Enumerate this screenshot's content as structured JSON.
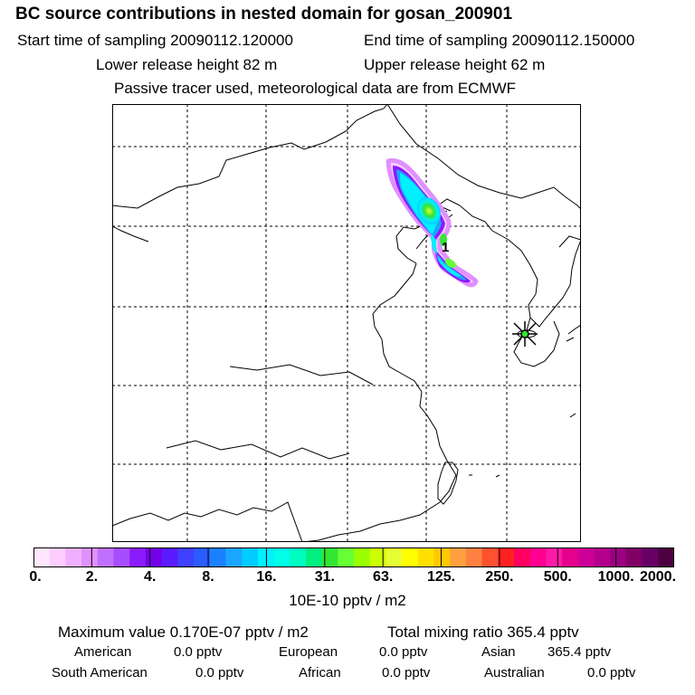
{
  "header": {
    "title": "BC  source contributions in nested domain for gosan_200901",
    "start_label": "Start time of sampling 20090112.120000",
    "end_label": "End time of sampling 20090112.150000",
    "lower_label": "Lower release height   82 m",
    "upper_label": "Upper release height   62 m",
    "tracer_note": "Passive tracer used, meteorological data are from ECMWF"
  },
  "map": {
    "release_marker_label": "1",
    "receptor": "gosan"
  },
  "colorbar": {
    "ticks": [
      "0.",
      "2.",
      "4.",
      "8.",
      "16.",
      "31.",
      "63.",
      "125.",
      "250.",
      "500.",
      "1000.",
      "2000."
    ],
    "unit": "10E-10 pptv / m2",
    "colors": [
      "#ffe6ff",
      "#ffccff",
      "#f0b0ff",
      "#e090ff",
      "#c070ff",
      "#a64dff",
      "#8c1aff",
      "#7300e6",
      "#5a1aff",
      "#4040ff",
      "#2a5cff",
      "#1a80ff",
      "#1aa6ff",
      "#00ccff",
      "#00f0ff",
      "#00ffe6",
      "#00ffbf",
      "#00f080",
      "#33e633",
      "#66ff33",
      "#99ff00",
      "#ccff00",
      "#e6ff33",
      "#ffff00",
      "#ffe000",
      "#ffc800",
      "#ffa040",
      "#ff8040",
      "#ff5030",
      "#ff2020",
      "#ff0060",
      "#ff0090",
      "#ff1aa6",
      "#e6008c",
      "#cc0099",
      "#b3008c",
      "#990080",
      "#800066",
      "#660066",
      "#4d0040"
    ]
  },
  "summary": {
    "max_line": "Maximum value  0.170E-07 pptv / m2",
    "total_line": "Total mixing ratio     365.4 pptv",
    "american_label": "American",
    "american_value": "0.0 pptv",
    "european_label": "European",
    "european_value": "0.0 pptv",
    "asian_label": "Asian",
    "asian_value": "365.4 pptv",
    "south_american_label": "South American",
    "south_american_value": "0.0 pptv",
    "african_label": "African",
    "african_value": "0.0 pptv",
    "australian_label": "Australian",
    "australian_value": "0.0 pptv"
  }
}
